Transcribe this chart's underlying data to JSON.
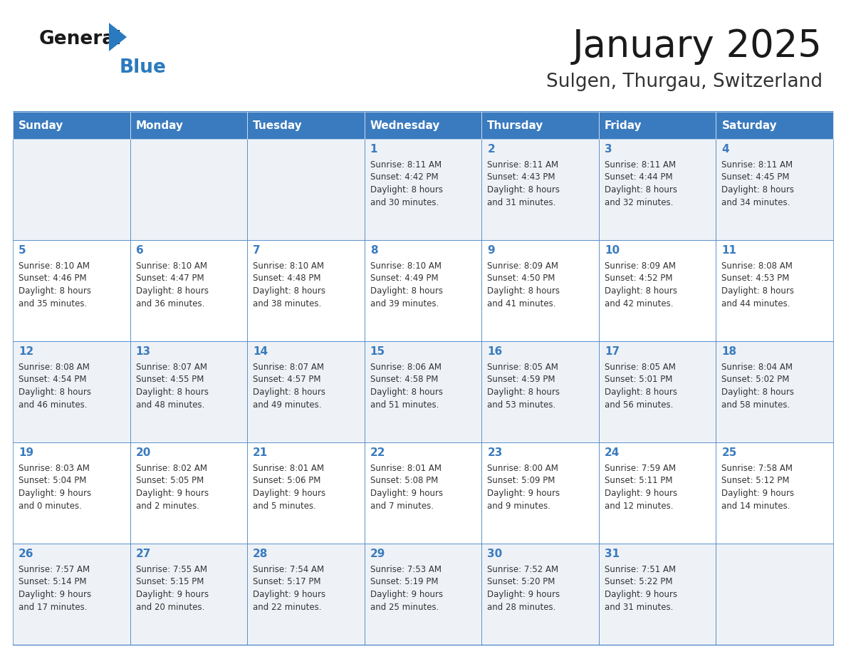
{
  "title": "January 2025",
  "subtitle": "Sulgen, Thurgau, Switzerland",
  "header_bg": "#3a7bbf",
  "header_text_color": "#ffffff",
  "header_days": [
    "Sunday",
    "Monday",
    "Tuesday",
    "Wednesday",
    "Thursday",
    "Friday",
    "Saturday"
  ],
  "row_bg_odd": "#eef2f7",
  "row_bg_even": "#ffffff",
  "cell_border_color": "#3a7bbf",
  "day_number_color": "#3a7bbf",
  "text_color": "#333333",
  "title_color": "#1a1a1a",
  "subtitle_color": "#333333",
  "logo_general_color": "#1a1a1a",
  "logo_blue_color": "#2a7abf",
  "calendar_data": [
    [
      {
        "day": null,
        "info": ""
      },
      {
        "day": null,
        "info": ""
      },
      {
        "day": null,
        "info": ""
      },
      {
        "day": 1,
        "info": "Sunrise: 8:11 AM\nSunset: 4:42 PM\nDaylight: 8 hours\nand 30 minutes."
      },
      {
        "day": 2,
        "info": "Sunrise: 8:11 AM\nSunset: 4:43 PM\nDaylight: 8 hours\nand 31 minutes."
      },
      {
        "day": 3,
        "info": "Sunrise: 8:11 AM\nSunset: 4:44 PM\nDaylight: 8 hours\nand 32 minutes."
      },
      {
        "day": 4,
        "info": "Sunrise: 8:11 AM\nSunset: 4:45 PM\nDaylight: 8 hours\nand 34 minutes."
      }
    ],
    [
      {
        "day": 5,
        "info": "Sunrise: 8:10 AM\nSunset: 4:46 PM\nDaylight: 8 hours\nand 35 minutes."
      },
      {
        "day": 6,
        "info": "Sunrise: 8:10 AM\nSunset: 4:47 PM\nDaylight: 8 hours\nand 36 minutes."
      },
      {
        "day": 7,
        "info": "Sunrise: 8:10 AM\nSunset: 4:48 PM\nDaylight: 8 hours\nand 38 minutes."
      },
      {
        "day": 8,
        "info": "Sunrise: 8:10 AM\nSunset: 4:49 PM\nDaylight: 8 hours\nand 39 minutes."
      },
      {
        "day": 9,
        "info": "Sunrise: 8:09 AM\nSunset: 4:50 PM\nDaylight: 8 hours\nand 41 minutes."
      },
      {
        "day": 10,
        "info": "Sunrise: 8:09 AM\nSunset: 4:52 PM\nDaylight: 8 hours\nand 42 minutes."
      },
      {
        "day": 11,
        "info": "Sunrise: 8:08 AM\nSunset: 4:53 PM\nDaylight: 8 hours\nand 44 minutes."
      }
    ],
    [
      {
        "day": 12,
        "info": "Sunrise: 8:08 AM\nSunset: 4:54 PM\nDaylight: 8 hours\nand 46 minutes."
      },
      {
        "day": 13,
        "info": "Sunrise: 8:07 AM\nSunset: 4:55 PM\nDaylight: 8 hours\nand 48 minutes."
      },
      {
        "day": 14,
        "info": "Sunrise: 8:07 AM\nSunset: 4:57 PM\nDaylight: 8 hours\nand 49 minutes."
      },
      {
        "day": 15,
        "info": "Sunrise: 8:06 AM\nSunset: 4:58 PM\nDaylight: 8 hours\nand 51 minutes."
      },
      {
        "day": 16,
        "info": "Sunrise: 8:05 AM\nSunset: 4:59 PM\nDaylight: 8 hours\nand 53 minutes."
      },
      {
        "day": 17,
        "info": "Sunrise: 8:05 AM\nSunset: 5:01 PM\nDaylight: 8 hours\nand 56 minutes."
      },
      {
        "day": 18,
        "info": "Sunrise: 8:04 AM\nSunset: 5:02 PM\nDaylight: 8 hours\nand 58 minutes."
      }
    ],
    [
      {
        "day": 19,
        "info": "Sunrise: 8:03 AM\nSunset: 5:04 PM\nDaylight: 9 hours\nand 0 minutes."
      },
      {
        "day": 20,
        "info": "Sunrise: 8:02 AM\nSunset: 5:05 PM\nDaylight: 9 hours\nand 2 minutes."
      },
      {
        "day": 21,
        "info": "Sunrise: 8:01 AM\nSunset: 5:06 PM\nDaylight: 9 hours\nand 5 minutes."
      },
      {
        "day": 22,
        "info": "Sunrise: 8:01 AM\nSunset: 5:08 PM\nDaylight: 9 hours\nand 7 minutes."
      },
      {
        "day": 23,
        "info": "Sunrise: 8:00 AM\nSunset: 5:09 PM\nDaylight: 9 hours\nand 9 minutes."
      },
      {
        "day": 24,
        "info": "Sunrise: 7:59 AM\nSunset: 5:11 PM\nDaylight: 9 hours\nand 12 minutes."
      },
      {
        "day": 25,
        "info": "Sunrise: 7:58 AM\nSunset: 5:12 PM\nDaylight: 9 hours\nand 14 minutes."
      }
    ],
    [
      {
        "day": 26,
        "info": "Sunrise: 7:57 AM\nSunset: 5:14 PM\nDaylight: 9 hours\nand 17 minutes."
      },
      {
        "day": 27,
        "info": "Sunrise: 7:55 AM\nSunset: 5:15 PM\nDaylight: 9 hours\nand 20 minutes."
      },
      {
        "day": 28,
        "info": "Sunrise: 7:54 AM\nSunset: 5:17 PM\nDaylight: 9 hours\nand 22 minutes."
      },
      {
        "day": 29,
        "info": "Sunrise: 7:53 AM\nSunset: 5:19 PM\nDaylight: 9 hours\nand 25 minutes."
      },
      {
        "day": 30,
        "info": "Sunrise: 7:52 AM\nSunset: 5:20 PM\nDaylight: 9 hours\nand 28 minutes."
      },
      {
        "day": 31,
        "info": "Sunrise: 7:51 AM\nSunset: 5:22 PM\nDaylight: 9 hours\nand 31 minutes."
      },
      {
        "day": null,
        "info": ""
      }
    ]
  ]
}
